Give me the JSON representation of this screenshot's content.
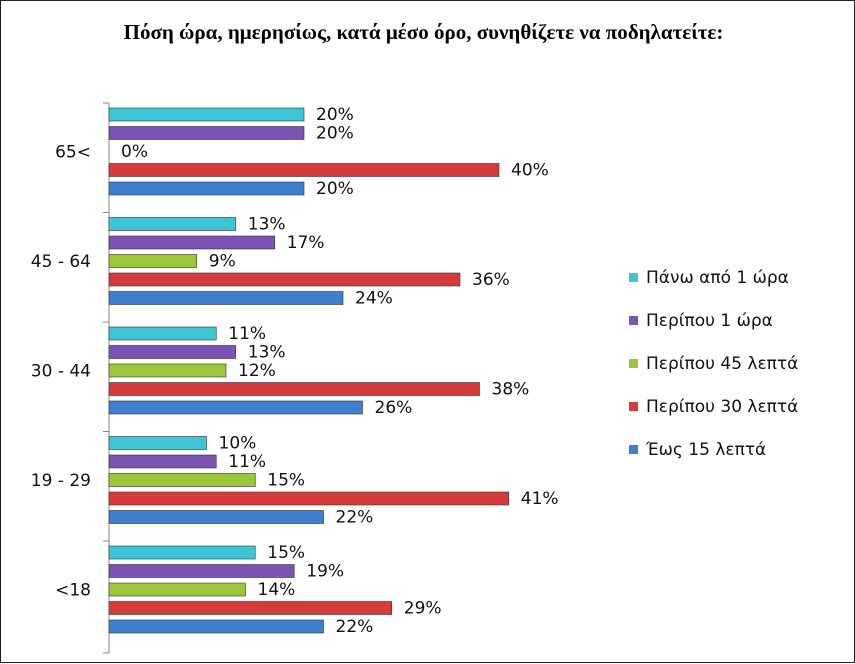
{
  "chart_data": {
    "type": "bar",
    "orientation": "horizontal",
    "title": "Πόση ώρα, ημερησίως, κατά μέσο όρο, συνηθίζετε να ποδηλατείτε:",
    "categories": [
      "65<",
      "45 - 64",
      "30 - 44",
      "19 - 29",
      "<18"
    ],
    "series": [
      {
        "name": "Πάνω από 1 ώρα",
        "color": "#3EC6D6",
        "values": [
          20,
          13,
          11,
          10,
          15
        ],
        "labels": [
          "20%",
          "13%",
          "11%",
          "10%",
          "15%"
        ]
      },
      {
        "name": "Περίπου 1 ώρα",
        "color": "#7B53B5",
        "values": [
          20,
          17,
          13,
          11,
          19
        ],
        "labels": [
          "20%",
          "17%",
          "13%",
          "11%",
          "19%"
        ]
      },
      {
        "name": "Περίπου 45 λεπτά",
        "color": "#9BC83A",
        "values": [
          0,
          9,
          12,
          15,
          14
        ],
        "labels": [
          "0%",
          "9%",
          "12%",
          "15%",
          "14%"
        ]
      },
      {
        "name": "Περίπου 30 λεπτά",
        "color": "#D63B3B",
        "values": [
          40,
          36,
          38,
          41,
          29
        ],
        "labels": [
          "40%",
          "36%",
          "38%",
          "41%",
          "29%"
        ]
      },
      {
        "name": "Έως 15 λεπτά",
        "color": "#3F7FD0",
        "values": [
          20,
          24,
          26,
          22,
          22
        ],
        "labels": [
          "20%",
          "24%",
          "26%",
          "22%",
          "22%"
        ]
      }
    ],
    "xlim": [
      0,
      45
    ],
    "legend": "right"
  }
}
